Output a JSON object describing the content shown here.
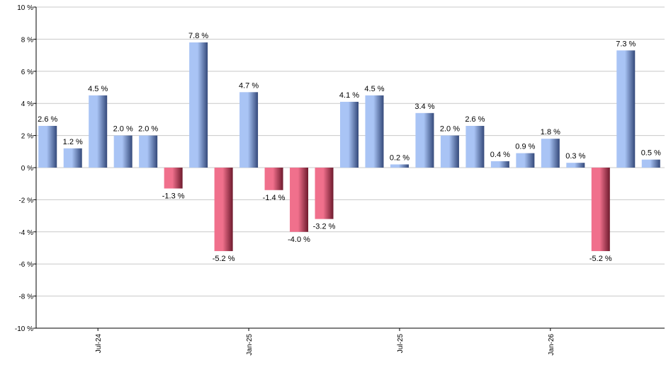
{
  "chart_data": {
    "type": "bar",
    "title": "",
    "xlabel": "",
    "ylabel": "",
    "ylim": [
      -10,
      10
    ],
    "y_ticks": [
      10,
      8,
      6,
      4,
      2,
      0,
      -2,
      -4,
      -6,
      -8,
      -10
    ],
    "y_tick_labels": [
      "10 %",
      "8 %",
      "6 %",
      "4 %",
      "2 %",
      "0 %",
      "-2 %",
      "-4 %",
      "-6 %",
      "-8 %",
      "-10 %"
    ],
    "grid": true,
    "x_tick_labels": [
      {
        "label": "Jul-24",
        "index": 2
      },
      {
        "label": "Jan-25",
        "index": 8
      },
      {
        "label": "Jul-25",
        "index": 14
      },
      {
        "label": "Jan-26",
        "index": 20
      }
    ],
    "values": [
      2.6,
      1.2,
      4.5,
      2.0,
      2.0,
      -1.3,
      7.8,
      -5.2,
      4.7,
      -1.4,
      -4.0,
      -3.2,
      4.1,
      4.5,
      0.2,
      3.4,
      2.0,
      2.6,
      0.4,
      0.9,
      1.8,
      0.3,
      -5.2,
      7.3,
      0.5
    ],
    "value_labels": [
      "2.6 %",
      "1.2 %",
      "4.5 %",
      "2.0 %",
      "2.0 %",
      "-1.3 %",
      "7.8 %",
      "-5.2 %",
      "4.7 %",
      "-1.4 %",
      "-4.0 %",
      "-3.2 %",
      "4.1 %",
      "4.5 %",
      "0.2 %",
      "3.4 %",
      "2.0 %",
      "2.6 %",
      "0.4 %",
      "0.9 %",
      "1.8 %",
      "0.3 %",
      "-5.2 %",
      "7.3 %",
      "0.5 %"
    ],
    "colors": {
      "positive_light": "#a9c4f5",
      "positive_dark": "#34497a",
      "negative_light": "#f0708c",
      "negative_dark": "#6e1a2d",
      "grid": "#c8c8c8",
      "axis": "#000000"
    }
  }
}
